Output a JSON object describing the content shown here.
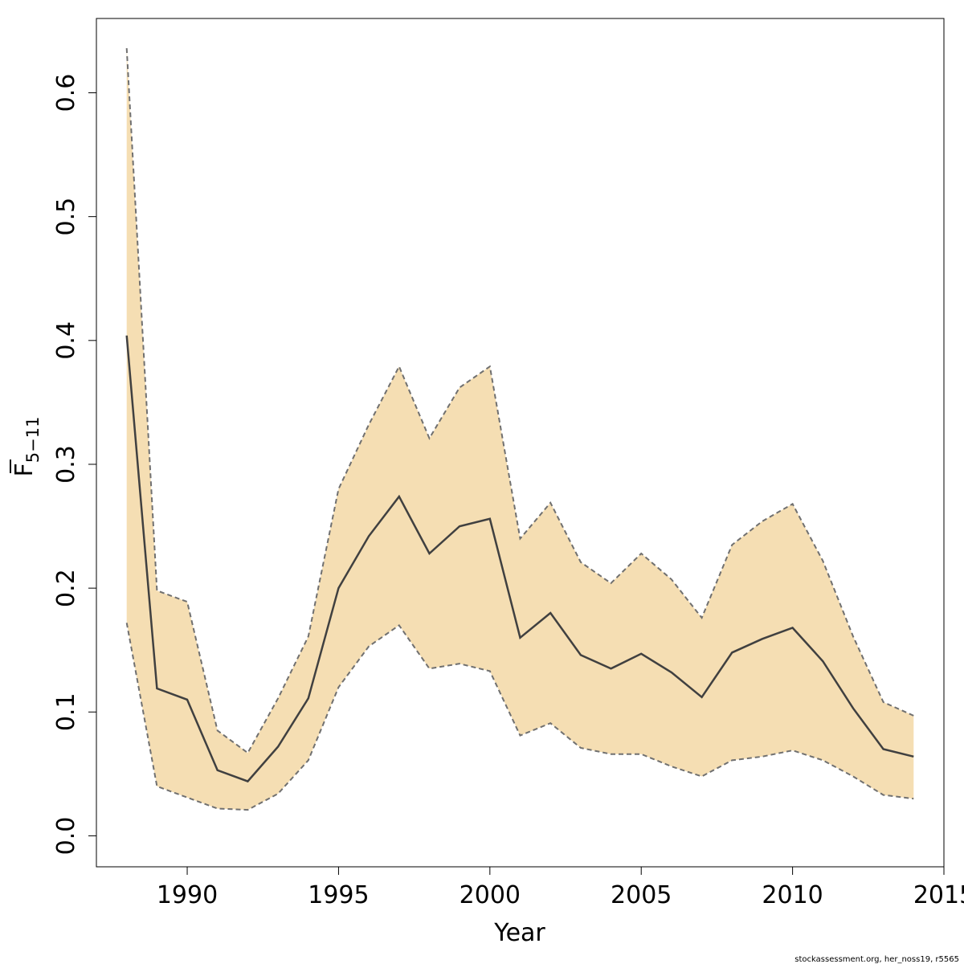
{
  "chart_data": {
    "type": "area",
    "xlabel": "Year",
    "ylabel_main": "F",
    "ylabel_sub": "5−11",
    "xlim": [
      1987,
      2015
    ],
    "ylim": [
      -0.025,
      0.66
    ],
    "xticks": [
      1990,
      1995,
      2000,
      2005,
      2010,
      2015
    ],
    "xtick_labels": [
      "1990",
      "1995",
      "2000",
      "2005",
      "2010",
      "2015"
    ],
    "yticks": [
      0.0,
      0.1,
      0.2,
      0.3,
      0.4,
      0.5,
      0.6
    ],
    "ytick_labels": [
      "0.0",
      "0.1",
      "0.2",
      "0.3",
      "0.4",
      "0.5",
      "0.6"
    ],
    "grid": false,
    "band_color": "#f5deb3",
    "line_color": "#404040",
    "bound_color": "#707070",
    "x": [
      1988,
      1989,
      1990,
      1991,
      1992,
      1993,
      1994,
      1995,
      1996,
      1997,
      1998,
      1999,
      2000,
      2001,
      2002,
      2003,
      2004,
      2005,
      2006,
      2007,
      2008,
      2009,
      2010,
      2011,
      2012,
      2013,
      2014
    ],
    "series": [
      {
        "values": [
          0.404,
          0.119,
          0.11,
          0.053,
          0.044,
          0.072,
          0.111,
          0.2,
          0.242,
          0.274,
          0.228,
          0.25,
          0.256,
          0.16,
          0.18,
          0.146,
          0.135,
          0.147,
          0.132,
          0.112,
          0.148,
          0.159,
          0.168,
          0.141,
          0.103,
          0.07,
          0.064
        ]
      },
      {
        "values": [
          0.636,
          0.198,
          0.189,
          0.085,
          0.067,
          0.111,
          0.161,
          0.28,
          0.332,
          0.379,
          0.321,
          0.362,
          0.379,
          0.24,
          0.269,
          0.221,
          0.204,
          0.228,
          0.207,
          0.176,
          0.235,
          0.254,
          0.268,
          0.222,
          0.161,
          0.108,
          0.097
        ]
      },
      {
        "values": [
          0.172,
          0.04,
          0.031,
          0.022,
          0.021,
          0.034,
          0.061,
          0.12,
          0.153,
          0.17,
          0.135,
          0.139,
          0.133,
          0.081,
          0.091,
          0.071,
          0.066,
          0.066,
          0.056,
          0.048,
          0.061,
          0.064,
          0.069,
          0.061,
          0.048,
          0.033,
          0.03
        ]
      }
    ]
  },
  "footnote": "stockassessment.org, her_noss19, r5565"
}
